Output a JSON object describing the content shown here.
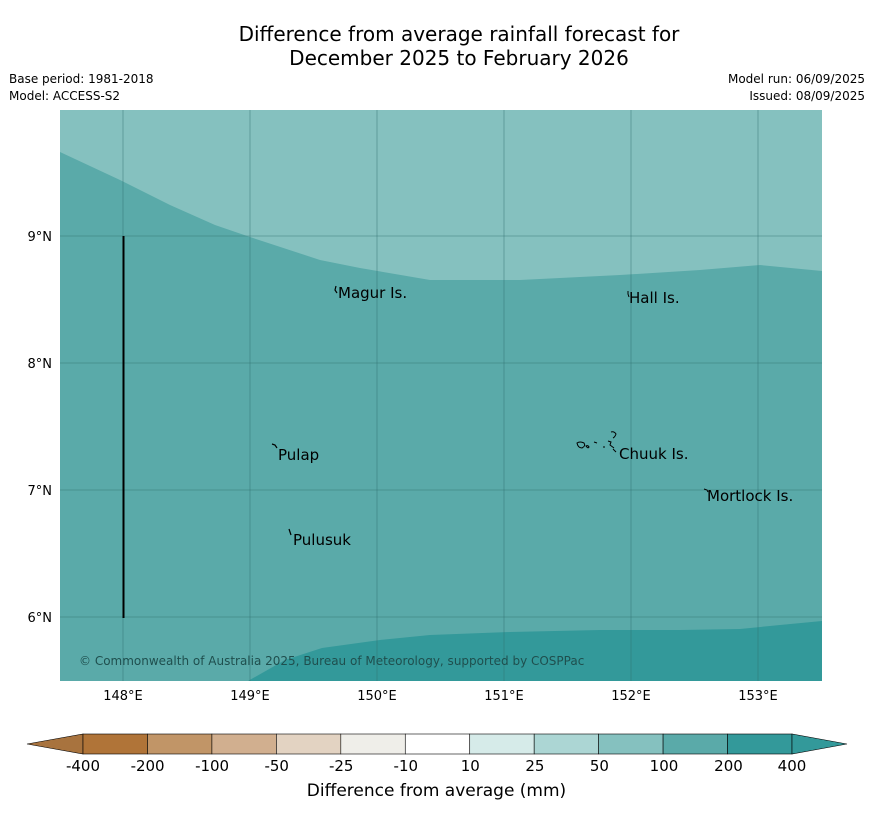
{
  "title_line1": "Difference from average rainfall forecast for",
  "title_line2": "December 2025 to February 2026",
  "meta_left": {
    "base_period": "Base period: 1981-2018",
    "model": "Model: ACCESS-S2"
  },
  "meta_right": {
    "model_run": "Model run: 06/09/2025",
    "issued": "Issued: 08/09/2025"
  },
  "map": {
    "lat_ticks": [
      "9°N",
      "8°N",
      "7°N",
      "6°N"
    ],
    "lon_ticks": [
      "148°E",
      "149°E",
      "150°E",
      "151°E",
      "152°E",
      "153°E"
    ],
    "places": [
      "Magur Is.",
      "Hall Is.",
      "Pulap",
      "Chuuk Is.",
      "Mortlock Is.",
      "Pulusuk"
    ],
    "copyright": "© Commonwealth of Australia 2025, Bureau of Meteorology, supported by COSPPac",
    "colors": {
      "band_50_100": "#85c1bf",
      "band_100_200": "#5aaaa9",
      "band_200_400": "#33999a"
    }
  },
  "colorbar": {
    "ticks": [
      "-400",
      "-200",
      "-100",
      "-50",
      "-25",
      "-10",
      "10",
      "25",
      "50",
      "100",
      "200",
      "400"
    ],
    "colors": [
      "#a8733e",
      "#b07438",
      "#c19567",
      "#d1af8f",
      "#e3d3c2",
      "#efeee9",
      "#ffffff",
      "#d6ebe9",
      "#acd6d4",
      "#85c1bf",
      "#5aaaa9",
      "#33999a",
      "#33999a"
    ],
    "label": "Difference from average (mm)"
  }
}
